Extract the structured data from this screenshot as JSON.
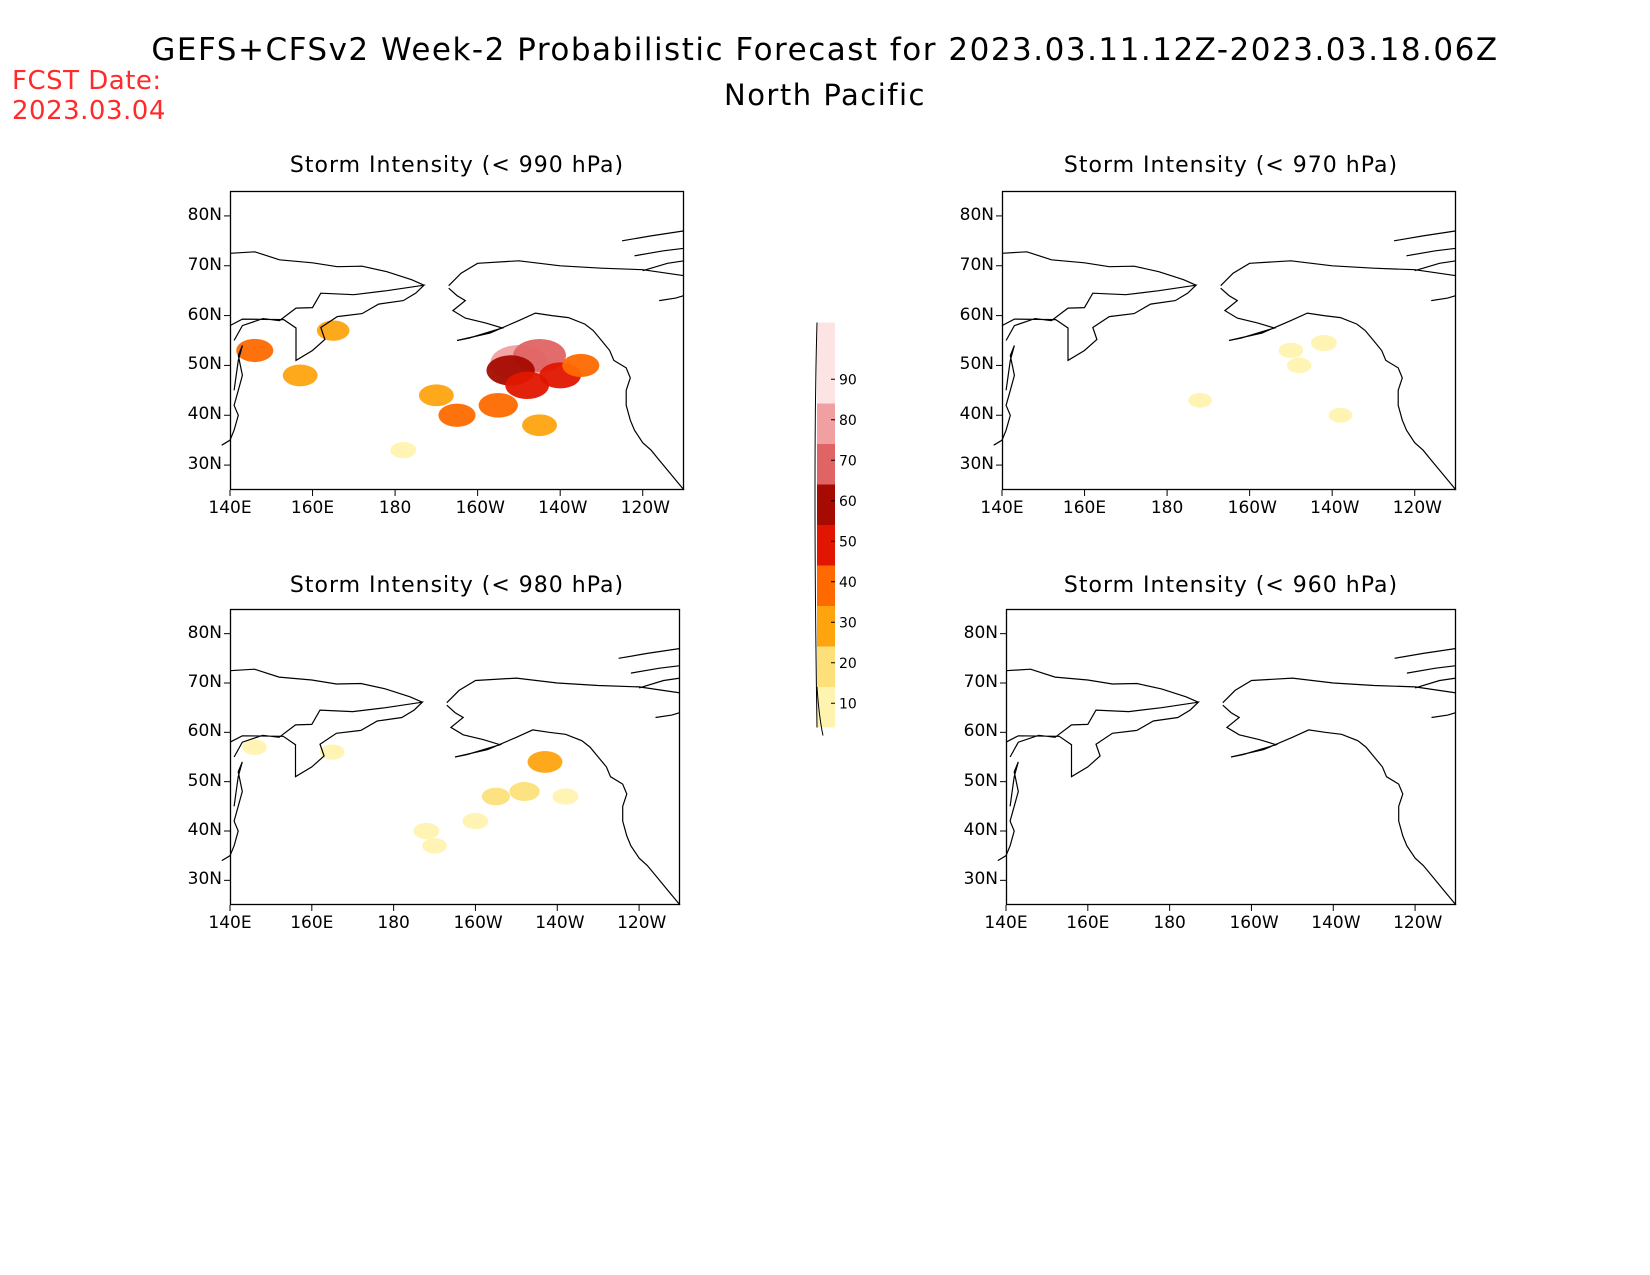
{
  "fcst": {
    "label": "FCST Date:",
    "date": "2023.03.04"
  },
  "title": {
    "line1": "GEFS+CFSv2 Week-2 Probabilistic Forecast for 2023.03.11.12Z-2023.03.18.06Z",
    "line2": "North Pacific"
  },
  "colors": {
    "text_red": "#ff2a2a",
    "levels": [
      {
        "from": 10,
        "to": 20,
        "color": "#fff3b0"
      },
      {
        "from": 20,
        "to": 30,
        "color": "#fde07a"
      },
      {
        "from": 30,
        "to": 40,
        "color": "#fda40f"
      },
      {
        "from": 40,
        "to": 50,
        "color": "#fe6a00"
      },
      {
        "from": 50,
        "to": 60,
        "color": "#e21600"
      },
      {
        "from": 60,
        "to": 70,
        "color": "#a50b00"
      },
      {
        "from": 70,
        "to": 80,
        "color": "#e06464"
      },
      {
        "from": 80,
        "to": 90,
        "color": "#f0a0a0"
      },
      {
        "from": 90,
        "to": 100,
        "color": "#fde4e4"
      }
    ]
  },
  "colorbar": {
    "labels": [
      "90",
      "80",
      "70",
      "60",
      "50",
      "40",
      "30",
      "20",
      "10"
    ]
  },
  "axes": {
    "lon_labels": [
      "140E",
      "160E",
      "180",
      "160W",
      "140W",
      "120W"
    ],
    "lat_labels": [
      "80N",
      "70N",
      "60N",
      "50N",
      "40N",
      "30N"
    ]
  },
  "chart_data": [
    {
      "type": "heatmap",
      "title": "Storm Intensity (< 990 hPa)",
      "x_range": [
        "140E",
        "110W"
      ],
      "y_range": [
        "25N",
        "85N"
      ],
      "blobs": [
        {
          "lon": -150,
          "lat": 50.5,
          "prob": 85
        },
        {
          "lon": -145,
          "lat": 52,
          "prob": 75
        },
        {
          "lon": -152,
          "lat": 49,
          "prob": 65
        },
        {
          "lon": -148,
          "lat": 46,
          "prob": 55
        },
        {
          "lon": -140,
          "lat": 48,
          "prob": 50
        },
        {
          "lon": -155,
          "lat": 42,
          "prob": 45
        },
        {
          "lon": -135,
          "lat": 50,
          "prob": 40
        },
        {
          "lon": -165,
          "lat": 40,
          "prob": 40
        },
        {
          "lon": -170,
          "lat": 44,
          "prob": 35
        },
        {
          "lon": -145,
          "lat": 38,
          "prob": 35
        },
        {
          "lon": 146,
          "lat": 53,
          "prob": 40
        },
        {
          "lon": 157,
          "lat": 48,
          "prob": 35
        },
        {
          "lon": 165,
          "lat": 57,
          "prob": 30
        },
        {
          "lon": -178,
          "lat": 33,
          "prob": 15
        }
      ]
    },
    {
      "type": "heatmap",
      "title": "Storm Intensity (< 970 hPa)",
      "x_range": [
        "140E",
        "110W"
      ],
      "y_range": [
        "25N",
        "85N"
      ],
      "blobs": [
        {
          "lon": -142,
          "lat": 54.5,
          "prob": 15
        },
        {
          "lon": -150,
          "lat": 53,
          "prob": 12
        },
        {
          "lon": -148,
          "lat": 50,
          "prob": 12
        },
        {
          "lon": -172,
          "lat": 43,
          "prob": 10
        },
        {
          "lon": -138,
          "lat": 40,
          "prob": 10
        }
      ]
    },
    {
      "type": "heatmap",
      "title": "Storm Intensity (< 980 hPa)",
      "x_range": [
        "140E",
        "110W"
      ],
      "y_range": [
        "25N",
        "85N"
      ],
      "blobs": [
        {
          "lon": -143,
          "lat": 54,
          "prob": 35
        },
        {
          "lon": -148,
          "lat": 48,
          "prob": 25
        },
        {
          "lon": -155,
          "lat": 47,
          "prob": 20
        },
        {
          "lon": -138,
          "lat": 47,
          "prob": 15
        },
        {
          "lon": -160,
          "lat": 42,
          "prob": 15
        },
        {
          "lon": -172,
          "lat": 40,
          "prob": 15
        },
        {
          "lon": -170,
          "lat": 37,
          "prob": 12
        },
        {
          "lon": 146,
          "lat": 57,
          "prob": 12
        },
        {
          "lon": 165,
          "lat": 56,
          "prob": 12
        }
      ]
    },
    {
      "type": "heatmap",
      "title": "Storm Intensity (< 960 hPa)",
      "x_range": [
        "140E",
        "110W"
      ],
      "y_range": [
        "25N",
        "85N"
      ],
      "blobs": []
    }
  ]
}
